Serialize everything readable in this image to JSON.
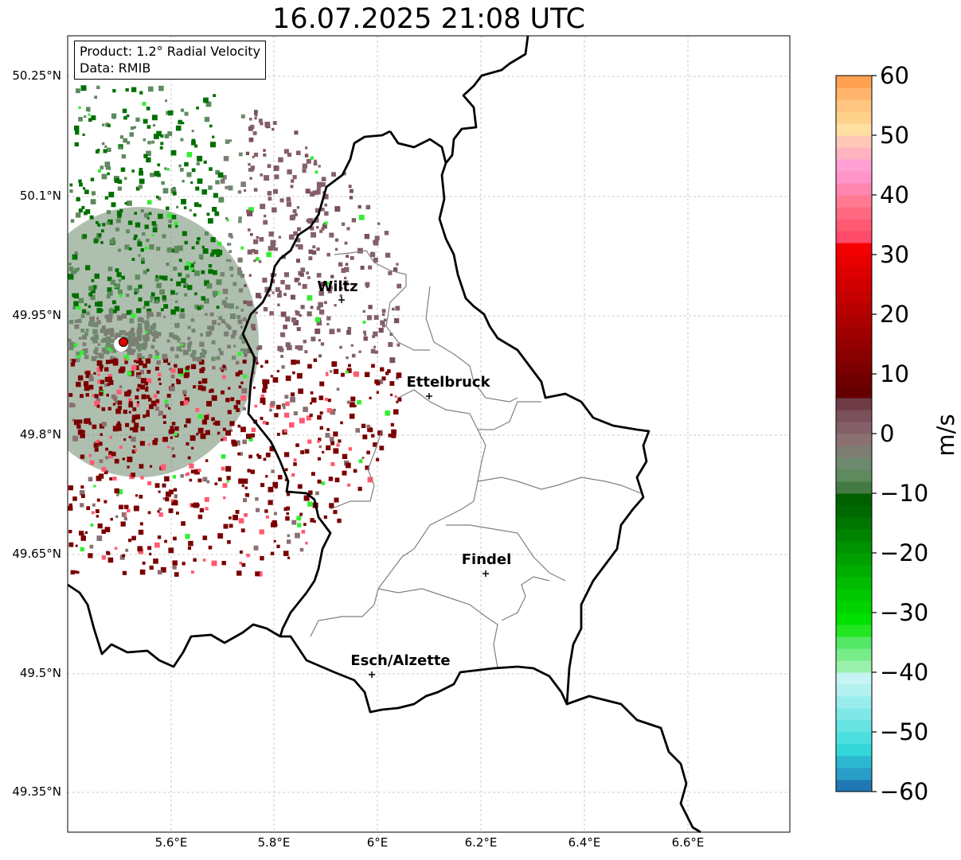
{
  "map": {
    "title": "16.07.2025 21:08 UTC",
    "info": {
      "product": "Product: 1.2° Radial Velocity",
      "source": "Data: RMIB"
    },
    "lat_ticks": [
      "50.25°N",
      "50.1°N",
      "49.95°N",
      "49.8°N",
      "49.65°N",
      "49.5°N",
      "49.35°N"
    ],
    "lon_ticks": [
      "5.6°E",
      "5.8°E",
      "6°E",
      "6.2°E",
      "6.4°E",
      "6.6°E"
    ],
    "cities": [
      {
        "name": "Wiltz"
      },
      {
        "name": "Ettelbruck"
      },
      {
        "name": "Findel"
      },
      {
        "name": "Esch/Alzette"
      }
    ],
    "radar_site_color": "#e00000",
    "colorbar": {
      "unit": "m/s",
      "ticks": [
        "60",
        "50",
        "40",
        "30",
        "20",
        "10",
        "0",
        "−10",
        "−20",
        "−30",
        "−40",
        "−50",
        "−60"
      ],
      "min": -60,
      "max": 60
    }
  }
}
